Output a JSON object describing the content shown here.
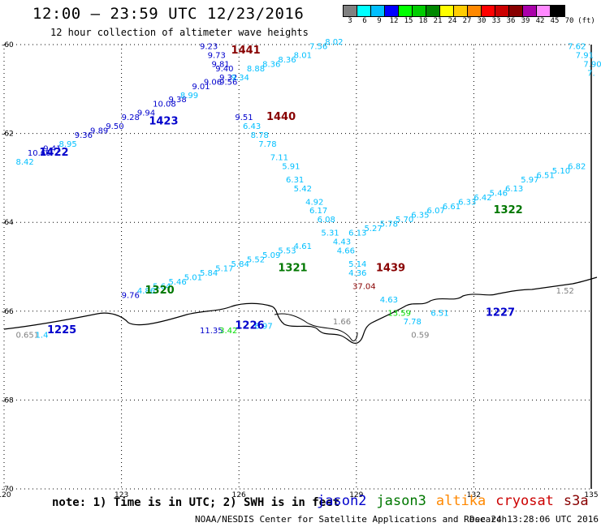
{
  "header": {
    "title": "12:00 – 23:59 UTC 12/23/2016",
    "subtitle": "12 hour collection of altimeter wave heights"
  },
  "legend": {
    "colors": [
      "#808080",
      "#00ffff",
      "#00bfff",
      "#0000ff",
      "#00ff00",
      "#00cc00",
      "#008800",
      "#ffff00",
      "#ffcc00",
      "#ff8800",
      "#ff0000",
      "#cc0000",
      "#880000",
      "#aa00aa",
      "#ff88ff",
      "#000000"
    ],
    "labels": [
      "3",
      "6",
      "9",
      "12",
      "15",
      "18",
      "21",
      "24",
      "27",
      "30",
      "33",
      "36",
      "39",
      "42",
      "45",
      "70",
      "(ft)"
    ]
  },
  "map": {
    "lon_ticks": [
      "120",
      "123",
      "126",
      "129",
      "132",
      "135"
    ],
    "lat_ticks": [
      "-60",
      "-62",
      "-64",
      "-66",
      "-68",
      "-70"
    ],
    "lon_range": [
      120,
      135
    ],
    "lat_range": [
      -60,
      -70
    ],
    "passes": [
      {
        "label": "1441",
        "color": "#880000",
        "pos": [
          125.8,
          -60.2
        ]
      },
      {
        "label": "1440",
        "color": "#880000",
        "pos": [
          126.7,
          -61.7
        ]
      },
      {
        "label": "1423",
        "color": "#0000cc",
        "pos": [
          123.7,
          -61.8
        ]
      },
      {
        "label": "1422",
        "color": "#0000cc",
        "pos": [
          120.9,
          -62.5
        ]
      },
      {
        "label": "1322",
        "color": "#007700",
        "pos": [
          132.5,
          -63.8
        ]
      },
      {
        "label": "1321",
        "color": "#007700",
        "pos": [
          127.0,
          -65.1
        ]
      },
      {
        "label": "1320",
        "color": "#007700",
        "pos": [
          123.6,
          -65.6
        ]
      },
      {
        "label": "1439",
        "color": "#880000",
        "pos": [
          129.5,
          -65.1
        ]
      },
      {
        "label": "1227",
        "color": "#0000cc",
        "pos": [
          132.3,
          -66.1
        ]
      },
      {
        "label": "1226",
        "color": "#0000cc",
        "pos": [
          125.9,
          -66.4
        ]
      },
      {
        "label": "1225",
        "color": "#0000cc",
        "pos": [
          121.1,
          -66.5
        ]
      }
    ],
    "values": [
      {
        "t": "8.42",
        "c": "#00bfff",
        "p": [
          120.3,
          -62.7
        ]
      },
      {
        "t": "10.66",
        "c": "#0000cc",
        "p": [
          120.6,
          -62.5
        ]
      },
      {
        "t": "9.41",
        "c": "#0000cc",
        "p": [
          121.0,
          -62.4
        ]
      },
      {
        "t": "8.95",
        "c": "#00bfff",
        "p": [
          121.4,
          -62.3
        ]
      },
      {
        "t": "9.36",
        "c": "#0000cc",
        "p": [
          121.8,
          -62.1
        ]
      },
      {
        "t": "9.89",
        "c": "#0000cc",
        "p": [
          122.2,
          -62.0
        ]
      },
      {
        "t": "9.50",
        "c": "#0000cc",
        "p": [
          122.6,
          -61.9
        ]
      },
      {
        "t": "9.28",
        "c": "#0000cc",
        "p": [
          123.0,
          -61.7
        ]
      },
      {
        "t": "9.94",
        "c": "#0000cc",
        "p": [
          123.4,
          -61.6
        ]
      },
      {
        "t": "10.08",
        "c": "#0000cc",
        "p": [
          123.8,
          -61.4
        ]
      },
      {
        "t": "9.38",
        "c": "#0000cc",
        "p": [
          124.2,
          -61.3
        ]
      },
      {
        "t": "8.99",
        "c": "#00bfff",
        "p": [
          124.5,
          -61.2
        ]
      },
      {
        "t": "9.01",
        "c": "#0000cc",
        "p": [
          124.8,
          -61.0
        ]
      },
      {
        "t": "9.06",
        "c": "#0000cc",
        "p": [
          125.1,
          -60.9
        ]
      },
      {
        "t": "9.56",
        "c": "#0000cc",
        "p": [
          125.5,
          -60.9
        ]
      },
      {
        "t": "9.23",
        "c": "#0000cc",
        "p": [
          125.0,
          -60.1
        ]
      },
      {
        "t": "9.73",
        "c": "#0000cc",
        "p": [
          125.2,
          -60.3
        ]
      },
      {
        "t": "9.81",
        "c": "#0000cc",
        "p": [
          125.3,
          -60.5
        ]
      },
      {
        "t": "9.40",
        "c": "#0000cc",
        "p": [
          125.4,
          -60.6
        ]
      },
      {
        "t": "9.32",
        "c": "#0000cc",
        "p": [
          125.5,
          -60.8
        ]
      },
      {
        "t": "9.34",
        "c": "#00bfff",
        "p": [
          125.8,
          -60.8
        ]
      },
      {
        "t": "8.88",
        "c": "#00bfff",
        "p": [
          126.2,
          -60.6
        ]
      },
      {
        "t": "8.36",
        "c": "#00bfff",
        "p": [
          126.6,
          -60.5
        ]
      },
      {
        "t": "8.36",
        "c": "#00bfff",
        "p": [
          127.0,
          -60.4
        ]
      },
      {
        "t": "8.01",
        "c": "#00bfff",
        "p": [
          127.4,
          -60.3
        ]
      },
      {
        "t": "7.56",
        "c": "#00bfff",
        "p": [
          127.8,
          -60.1
        ]
      },
      {
        "t": "8.02",
        "c": "#00bfff",
        "p": [
          128.2,
          -60.0
        ]
      },
      {
        "t": "9.51",
        "c": "#0000cc",
        "p": [
          125.9,
          -61.7
        ]
      },
      {
        "t": "6.43",
        "c": "#00bfff",
        "p": [
          126.1,
          -61.9
        ]
      },
      {
        "t": "8.78",
        "c": "#00bfff",
        "p": [
          126.3,
          -62.1
        ]
      },
      {
        "t": "7.78",
        "c": "#00bfff",
        "p": [
          126.5,
          -62.3
        ]
      },
      {
        "t": "7.11",
        "c": "#00bfff",
        "p": [
          126.8,
          -62.6
        ]
      },
      {
        "t": "5.91",
        "c": "#00bfff",
        "p": [
          127.1,
          -62.8
        ]
      },
      {
        "t": "6.31",
        "c": "#00bfff",
        "p": [
          127.2,
          -63.1
        ]
      },
      {
        "t": "5.42",
        "c": "#00bfff",
        "p": [
          127.4,
          -63.3
        ]
      },
      {
        "t": "4.92",
        "c": "#00bfff",
        "p": [
          127.7,
          -63.6
        ]
      },
      {
        "t": "6.17",
        "c": "#00bfff",
        "p": [
          127.8,
          -63.8
        ]
      },
      {
        "t": "6.08",
        "c": "#00bfff",
        "p": [
          128.0,
          -64.0
        ]
      },
      {
        "t": "5.31",
        "c": "#00bfff",
        "p": [
          128.1,
          -64.3
        ]
      },
      {
        "t": "4.43",
        "c": "#00bfff",
        "p": [
          128.4,
          -64.5
        ]
      },
      {
        "t": "4.66",
        "c": "#00bfff",
        "p": [
          128.5,
          -64.7
        ]
      },
      {
        "t": "5.14",
        "c": "#00bfff",
        "p": [
          128.8,
          -65.0
        ]
      },
      {
        "t": "4.36",
        "c": "#00bfff",
        "p": [
          128.8,
          -65.2
        ]
      },
      {
        "t": "37.04",
        "c": "#880000",
        "p": [
          128.9,
          -65.5
        ]
      },
      {
        "t": "9.76",
        "c": "#0000cc",
        "p": [
          123.0,
          -65.7
        ]
      },
      {
        "t": "4.86",
        "c": "#00bfff",
        "p": [
          123.4,
          -65.6
        ]
      },
      {
        "t": "5.64",
        "c": "#00bfff",
        "p": [
          123.8,
          -65.5
        ]
      },
      {
        "t": "5.46",
        "c": "#00bfff",
        "p": [
          124.2,
          -65.4
        ]
      },
      {
        "t": "5.01",
        "c": "#00bfff",
        "p": [
          124.6,
          -65.3
        ]
      },
      {
        "t": "5.84",
        "c": "#00bfff",
        "p": [
          125.0,
          -65.2
        ]
      },
      {
        "t": "5.17",
        "c": "#00bfff",
        "p": [
          125.4,
          -65.1
        ]
      },
      {
        "t": "5.84",
        "c": "#00bfff",
        "p": [
          125.8,
          -65.0
        ]
      },
      {
        "t": "5.52",
        "c": "#00bfff",
        "p": [
          126.2,
          -64.9
        ]
      },
      {
        "t": "5.09",
        "c": "#00bfff",
        "p": [
          126.6,
          -64.8
        ]
      },
      {
        "t": "5.53",
        "c": "#00bfff",
        "p": [
          127.0,
          -64.7
        ]
      },
      {
        "t": "4.61",
        "c": "#00bfff",
        "p": [
          127.4,
          -64.6
        ]
      },
      {
        "t": "6.13",
        "c": "#00bfff",
        "p": [
          128.8,
          -64.3
        ]
      },
      {
        "t": "5.27",
        "c": "#00bfff",
        "p": [
          129.2,
          -64.2
        ]
      },
      {
        "t": "5.78",
        "c": "#00bfff",
        "p": [
          129.6,
          -64.1
        ]
      },
      {
        "t": "5.70",
        "c": "#00bfff",
        "p": [
          130.0,
          -64.0
        ]
      },
      {
        "t": "6.35",
        "c": "#00bfff",
        "p": [
          130.4,
          -63.9
        ]
      },
      {
        "t": "6.07",
        "c": "#00bfff",
        "p": [
          130.8,
          -63.8
        ]
      },
      {
        "t": "6.61",
        "c": "#00bfff",
        "p": [
          131.2,
          -63.7
        ]
      },
      {
        "t": "6.33",
        "c": "#00bfff",
        "p": [
          131.6,
          -63.6
        ]
      },
      {
        "t": "6.42",
        "c": "#00bfff",
        "p": [
          132.0,
          -63.5
        ]
      },
      {
        "t": "5.46",
        "c": "#00bfff",
        "p": [
          132.4,
          -63.4
        ]
      },
      {
        "t": "6.13",
        "c": "#00bfff",
        "p": [
          132.8,
          -63.3
        ]
      },
      {
        "t": "5.97",
        "c": "#00bfff",
        "p": [
          133.2,
          -63.1
        ]
      },
      {
        "t": "6.51",
        "c": "#00bfff",
        "p": [
          133.6,
          -63.0
        ]
      },
      {
        "t": "5.10",
        "c": "#00bfff",
        "p": [
          134.0,
          -62.9
        ]
      },
      {
        "t": "6.82",
        "c": "#00bfff",
        "p": [
          134.4,
          -62.8
        ]
      },
      {
        "t": "7.62",
        "c": "#00bfff",
        "p": [
          134.4,
          -60.1
        ]
      },
      {
        "t": "7.91",
        "c": "#00bfff",
        "p": [
          134.6,
          -60.3
        ]
      },
      {
        "t": "7.90",
        "c": "#00bfff",
        "p": [
          134.8,
          -60.5
        ]
      },
      {
        "t": "7.",
        "c": "#00bfff",
        "p": [
          134.9,
          -60.7
        ]
      },
      {
        "t": "4.63",
        "c": "#00bfff",
        "p": [
          129.6,
          -65.8
        ]
      },
      {
        "t": "13.59",
        "c": "#00dd00",
        "p": [
          129.8,
          -66.1
        ]
      },
      {
        "t": "7.78",
        "c": "#00bfff",
        "p": [
          130.2,
          -66.3
        ]
      },
      {
        "t": "6.51",
        "c": "#00bfff",
        "p": [
          130.9,
          -66.1
        ]
      },
      {
        "t": "0.59",
        "c": "#808080",
        "p": [
          130.4,
          -66.6
        ]
      },
      {
        "t": "1.66",
        "c": "#808080",
        "p": [
          128.4,
          -66.3
        ]
      },
      {
        "t": "1.52",
        "c": "#808080",
        "p": [
          134.1,
          -65.6
        ]
      },
      {
        "t": "11.35",
        "c": "#0000cc",
        "p": [
          125.0,
          -66.5
        ]
      },
      {
        "t": "3.42",
        "c": "#00dd00",
        "p": [
          125.5,
          -66.5
        ]
      },
      {
        "t": "6.97",
        "c": "#00bfff",
        "p": [
          126.4,
          -66.4
        ]
      },
      {
        "t": "0.651",
        "c": "#808080",
        "p": [
          120.3,
          -66.6
        ]
      },
      {
        "t": "1.4",
        "c": "#00bfff",
        "p": [
          120.8,
          -66.6
        ]
      }
    ]
  },
  "footer": {
    "note": "note: 1) Time is in UTC; 2) SWH is in feet",
    "missions": [
      {
        "name": "jason2",
        "color": "#0000cc"
      },
      {
        "name": "jason3",
        "color": "#007700"
      },
      {
        "name": "altika",
        "color": "#ff8800"
      },
      {
        "name": "cryosat",
        "color": "#cc0000"
      },
      {
        "name": "s3a",
        "color": "#880000"
      }
    ],
    "credit": "NOAA/NESDIS Center for Satellite Applications and Research",
    "timestamp": "Dec 24 13:28:06 UTC 2016"
  }
}
